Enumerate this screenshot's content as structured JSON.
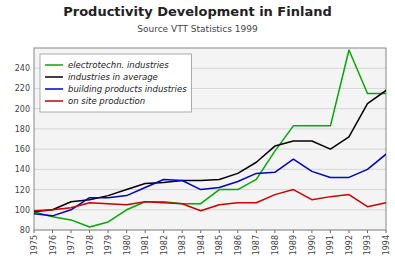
{
  "chart_data": {
    "type": "line",
    "title": "Productivity Development in Finland",
    "subtitle": "Source VTT Statistics 1999",
    "x": [
      1975,
      1976,
      1977,
      1978,
      1979,
      1980,
      1981,
      1982,
      1983,
      1984,
      1985,
      1986,
      1987,
      1988,
      1989,
      1990,
      1991,
      1992,
      1993,
      1994
    ],
    "series": [
      {
        "name": "electrotechn. industries",
        "color": "#00aa00",
        "values": [
          98,
          93,
          90,
          83,
          88,
          100,
          108,
          108,
          106,
          106,
          120,
          120,
          130,
          158,
          183,
          183,
          183,
          258,
          215,
          215
        ]
      },
      {
        "name": "industries in average",
        "color": "#000000",
        "values": [
          98,
          100,
          108,
          110,
          114,
          120,
          126,
          127,
          129,
          129,
          130,
          136,
          147,
          163,
          168,
          168,
          160,
          172,
          205,
          218
        ]
      },
      {
        "name": "building products industries",
        "color": "#0000cc",
        "values": [
          96,
          94,
          100,
          112,
          112,
          114,
          122,
          130,
          129,
          120,
          122,
          128,
          136,
          137,
          150,
          138,
          132,
          132,
          140,
          155
        ]
      },
      {
        "name": "on site production",
        "color": "#cc0000",
        "values": [
          99,
          100,
          102,
          107,
          106,
          105,
          108,
          107,
          106,
          99,
          105,
          107,
          107,
          115,
          120,
          110,
          113,
          115,
          103,
          107
        ]
      }
    ],
    "xlim": [
      1975,
      1994
    ],
    "xticks": [
      1975,
      1976,
      1977,
      1978,
      1979,
      1980,
      1981,
      1982,
      1983,
      1984,
      1985,
      1986,
      1987,
      1988,
      1989,
      1990,
      1991,
      1992,
      1993,
      1994
    ],
    "ylim": [
      80,
      260
    ],
    "yticks": [
      80,
      100,
      120,
      140,
      160,
      180,
      200,
      220,
      240
    ],
    "grid": "y",
    "legend": "upper-left"
  }
}
